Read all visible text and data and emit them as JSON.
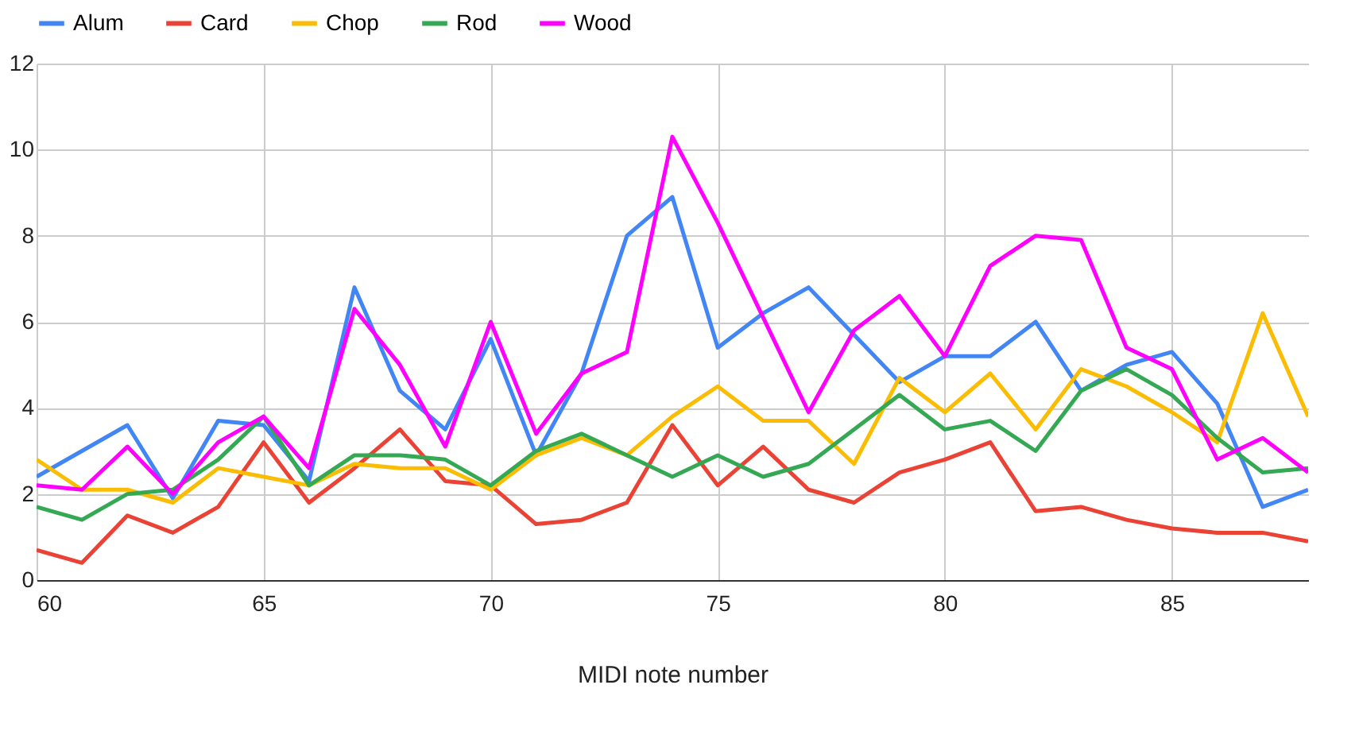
{
  "chart_data": {
    "type": "line",
    "xlabel": "MIDI note number",
    "x": [
      60,
      61,
      62,
      63,
      64,
      65,
      66,
      67,
      68,
      69,
      70,
      71,
      72,
      73,
      74,
      75,
      76,
      77,
      78,
      79,
      80,
      81,
      82,
      83,
      84,
      85,
      86,
      87,
      88
    ],
    "series": [
      {
        "name": "Alum",
        "color": "#4285f4",
        "values": [
          2.4,
          3.0,
          3.6,
          1.9,
          3.7,
          3.6,
          2.3,
          6.8,
          4.4,
          3.5,
          5.6,
          2.9,
          4.8,
          8.0,
          8.9,
          5.4,
          6.2,
          6.8,
          5.7,
          4.6,
          5.2,
          5.2,
          6.0,
          4.4,
          5.0,
          5.3,
          4.1,
          1.7,
          2.1
        ]
      },
      {
        "name": "Card",
        "color": "#ea4335",
        "values": [
          0.7,
          0.4,
          1.5,
          1.1,
          1.7,
          3.2,
          1.8,
          2.6,
          3.5,
          2.3,
          2.2,
          1.3,
          1.4,
          1.8,
          3.6,
          2.2,
          3.1,
          2.1,
          1.8,
          2.5,
          2.8,
          3.2,
          1.6,
          1.7,
          1.4,
          1.2,
          1.1,
          1.1,
          0.9
        ]
      },
      {
        "name": "Chop",
        "color": "#fbbc04",
        "values": [
          2.8,
          2.1,
          2.1,
          1.8,
          2.6,
          2.4,
          2.2,
          2.7,
          2.6,
          2.6,
          2.1,
          2.9,
          3.3,
          2.9,
          3.8,
          4.5,
          3.7,
          3.7,
          2.7,
          4.7,
          3.9,
          4.8,
          3.5,
          4.9,
          4.5,
          3.9,
          3.2,
          6.2,
          3.8
        ]
      },
      {
        "name": "Rod",
        "color": "#34a853",
        "values": [
          1.7,
          1.4,
          2.0,
          2.1,
          2.8,
          3.8,
          2.2,
          2.9,
          2.9,
          2.8,
          2.2,
          3.0,
          3.4,
          2.9,
          2.4,
          2.9,
          2.4,
          2.7,
          3.5,
          4.3,
          3.5,
          3.7,
          3.0,
          4.4,
          4.9,
          4.3,
          3.3,
          2.5,
          2.6
        ]
      },
      {
        "name": "Wood",
        "color": "#ff00ff",
        "values": [
          2.2,
          2.1,
          3.1,
          2.0,
          3.2,
          3.8,
          2.6,
          6.3,
          5.0,
          3.1,
          6.0,
          3.4,
          4.8,
          5.3,
          10.3,
          8.3,
          6.1,
          3.9,
          5.8,
          6.6,
          5.2,
          7.3,
          8.0,
          7.9,
          5.4,
          4.9,
          2.8,
          3.3,
          2.5
        ]
      }
    ],
    "xlim": [
      60,
      88
    ],
    "xticks": [
      60,
      65,
      70,
      75,
      80,
      85
    ],
    "ylim": [
      0,
      12
    ],
    "yticks": [
      0,
      2,
      4,
      6,
      8,
      10,
      12
    ],
    "grid": true,
    "legend": "top",
    "line_style": "solid",
    "marker": "none"
  }
}
